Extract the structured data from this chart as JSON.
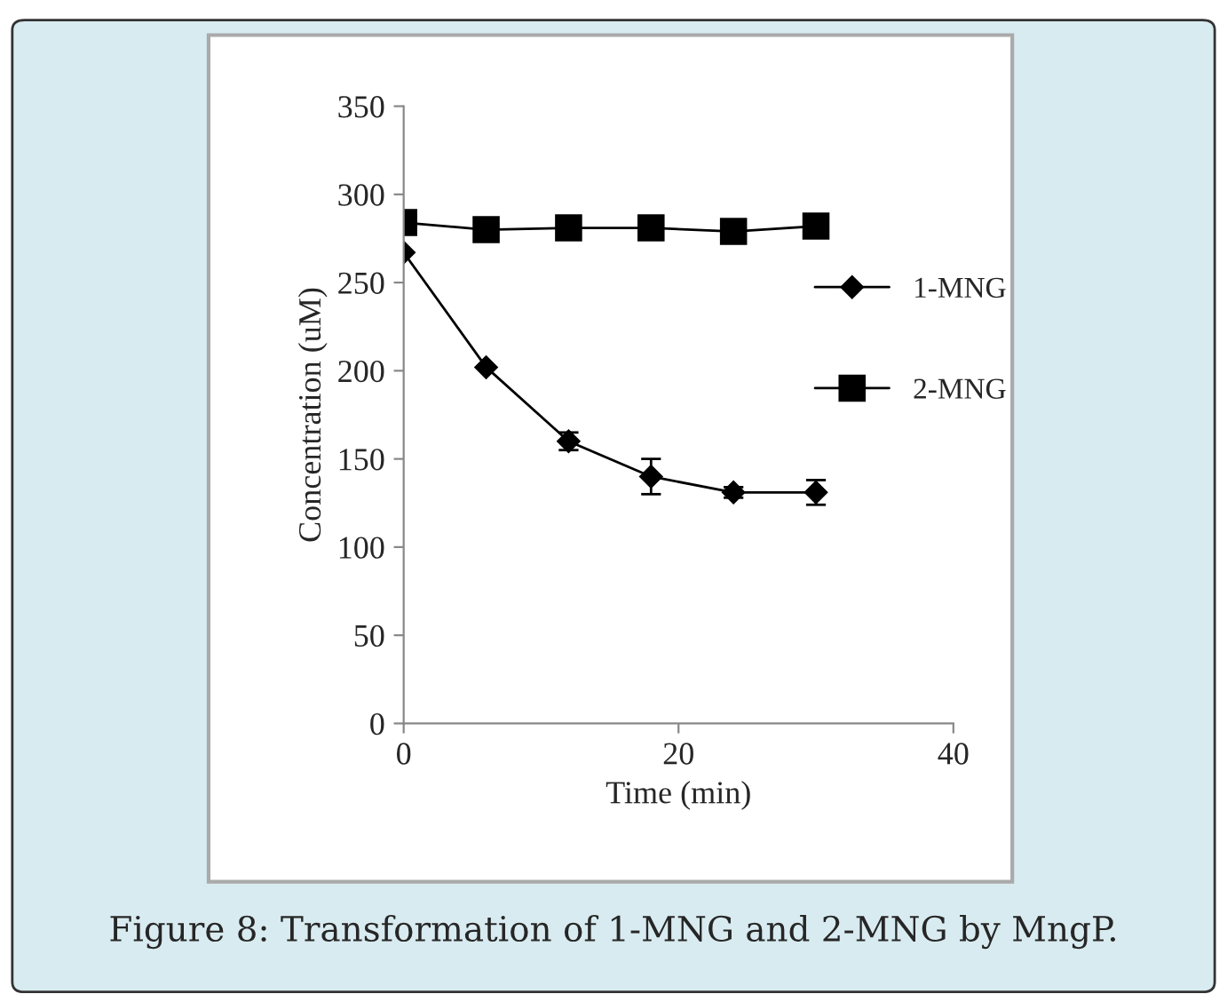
{
  "chart_data": {
    "type": "line",
    "xlabel": "Time (min)",
    "ylabel": "Concentration (uM)",
    "x": [
      0,
      6,
      12,
      18,
      24,
      30
    ],
    "series": [
      {
        "name": "1-MNG",
        "color": "#000000",
        "marker": "diamond",
        "values": [
          267,
          202,
          160,
          140,
          131,
          131
        ],
        "errors": [
          null,
          null,
          5,
          10,
          3,
          7
        ]
      },
      {
        "name": "2-MNG",
        "color": "#000000",
        "marker": "square",
        "values": [
          284,
          280,
          281,
          281,
          279,
          282
        ]
      }
    ],
    "xlim": [
      0,
      40
    ],
    "xticks": [
      0,
      20,
      40
    ],
    "ylim": [
      0,
      350
    ],
    "yticks": [
      0,
      50,
      100,
      150,
      200,
      250,
      300,
      350
    ],
    "grid": false,
    "legend": "right",
    "line_style": "solid",
    "annotations": [
      "Figure 8: Transformation of 1-MNG and 2-MNG by MngP."
    ]
  }
}
